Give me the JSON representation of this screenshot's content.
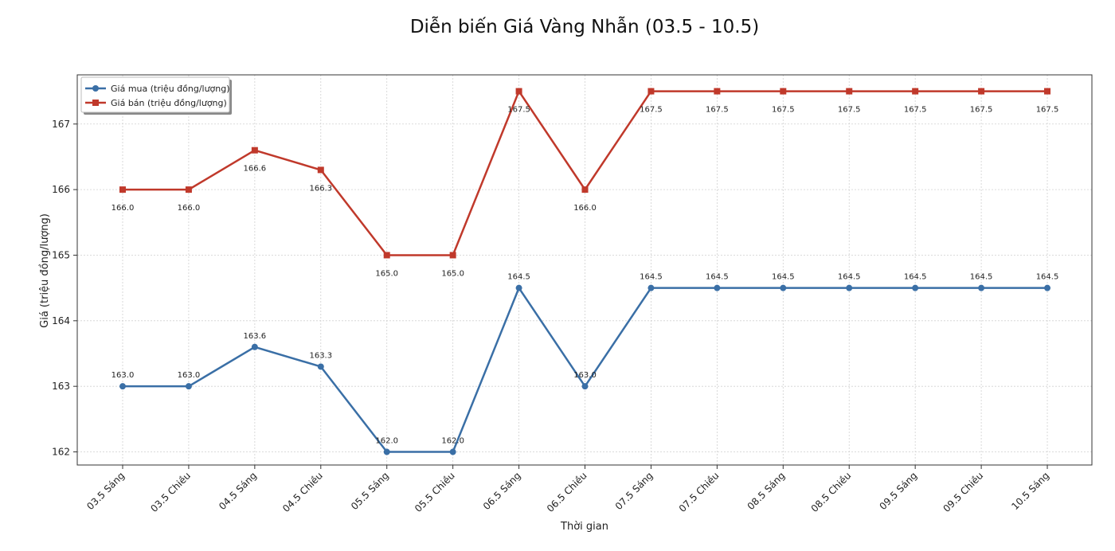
{
  "chart_data": {
    "type": "line",
    "title": "Diễn biến Giá Vàng Nhẫn (03.5 - 10.5)",
    "xlabel": "Thời gian",
    "ylabel": "Giá (triệu đồng/lượng)",
    "categories": [
      "03.5 Sáng",
      "03.5 Chiều",
      "04.5 Sáng",
      "04.5 Chiều",
      "05.5 Sáng",
      "05.5 Chiều",
      "06.5 Sáng",
      "06.5 Chiều",
      "07.5 Sáng",
      "07.5 Chiều",
      "08.5 Sáng",
      "08.5 Chiều",
      "09.5 Sáng",
      "09.5 Chiều",
      "10.5 Sáng"
    ],
    "yticks": [
      162,
      163,
      164,
      165,
      166,
      167
    ],
    "ylim": [
      161.8,
      167.75
    ],
    "grid": true,
    "legend_position": "top-left",
    "series": [
      {
        "name": "Giá mua (triệu đồng/lượng)",
        "color": "#3a6fa6",
        "marker": "circle",
        "values": [
          163.0,
          163.0,
          163.6,
          163.3,
          162.0,
          162.0,
          164.5,
          163.0,
          164.5,
          164.5,
          164.5,
          164.5,
          164.5,
          164.5,
          164.5
        ],
        "labels": [
          "163.0",
          "163.0",
          "163.6",
          "163.3",
          "162.0",
          "162.0",
          "164.5",
          "163.0",
          "164.5",
          "164.5",
          "164.5",
          "164.5",
          "164.5",
          "164.5",
          "164.5"
        ]
      },
      {
        "name": "Giá bán (triệu đồng/lượng)",
        "color": "#c0392b",
        "marker": "square",
        "values": [
          166.0,
          166.0,
          166.6,
          166.3,
          165.0,
          165.0,
          167.5,
          166.0,
          167.5,
          167.5,
          167.5,
          167.5,
          167.5,
          167.5,
          167.5
        ],
        "labels": [
          "166.0",
          "166.0",
          "166.6",
          "166.3",
          "165.0",
          "165.0",
          "167.5",
          "166.0",
          "167.5",
          "167.5",
          "167.5",
          "167.5",
          "167.5",
          "167.5",
          "167.5"
        ]
      }
    ]
  }
}
